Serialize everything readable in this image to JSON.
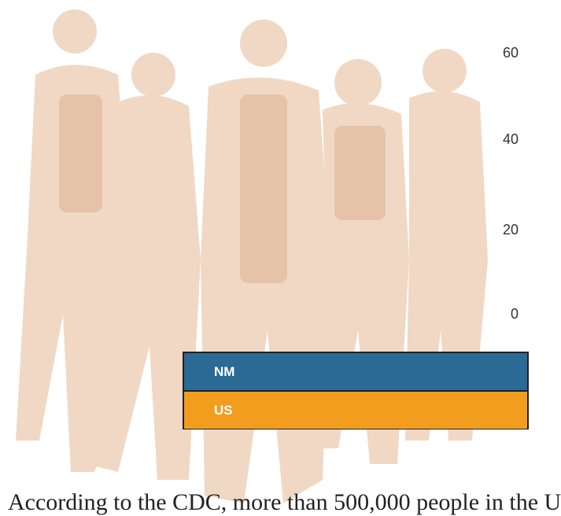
{
  "axis_labels": [
    "60",
    "40",
    "20",
    "0"
  ],
  "legend": [
    "NM",
    "US"
  ],
  "text": "According to the CDC, more than 500,000 people in the U"
}
